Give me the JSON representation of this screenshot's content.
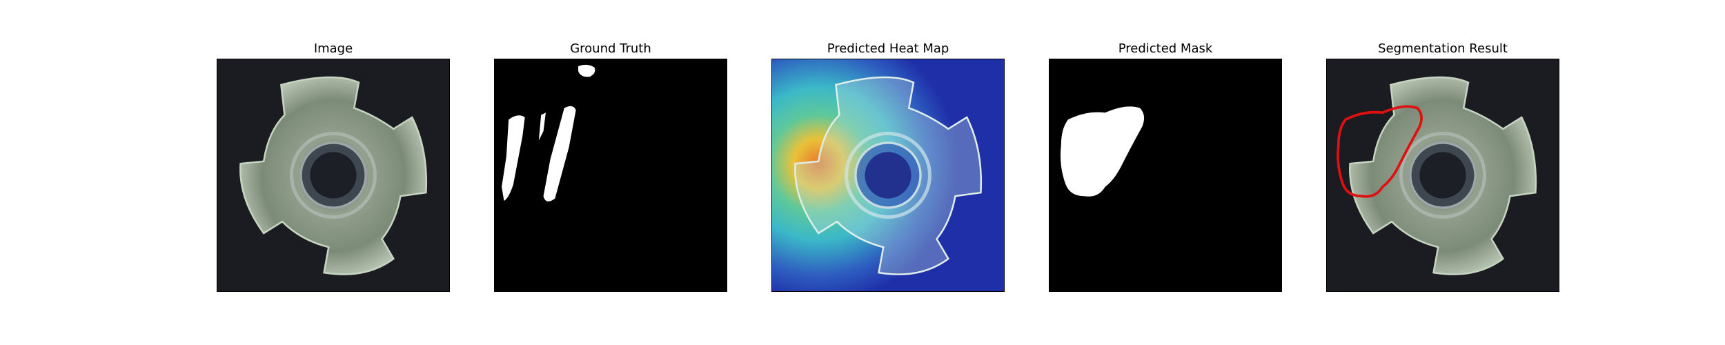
{
  "figure": {
    "panels": [
      {
        "id": "image",
        "title": "Image"
      },
      {
        "id": "ground-truth",
        "title": "Ground Truth"
      },
      {
        "id": "heat-map",
        "title": "Predicted Heat Map"
      },
      {
        "id": "predicted-mask",
        "title": "Predicted Mask"
      },
      {
        "id": "segmentation",
        "title": "Segmentation Result"
      }
    ]
  },
  "colors": {
    "background": "#1a1c22",
    "part_fill": "#8d9a86",
    "part_edge": "#c6d4c0",
    "mask_white": "#ffffff",
    "mask_black": "#000000",
    "heat_low": "#1f2fa8",
    "heat_mid": "#3bb8c8",
    "heat_high": "#e8782a",
    "contour": "#e01010"
  }
}
